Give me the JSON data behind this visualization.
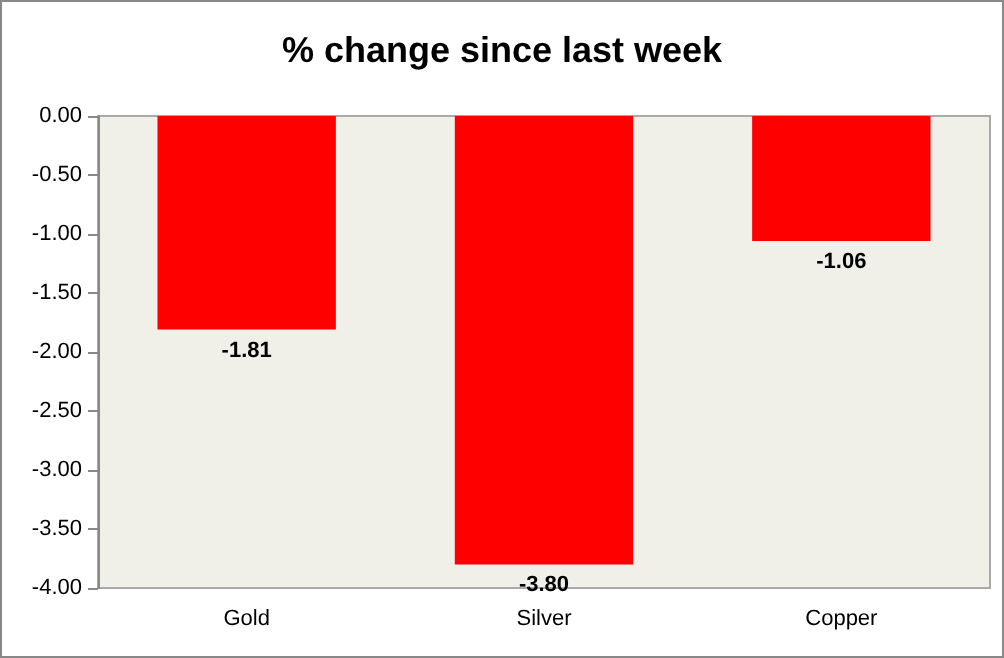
{
  "chart_data": {
    "type": "bar",
    "title": "% change since last week",
    "categories": [
      "Gold",
      "Silver",
      "Copper"
    ],
    "values": [
      -1.81,
      -3.8,
      -1.06
    ],
    "value_labels": [
      "-1.81",
      "-3.80",
      "-1.06"
    ],
    "color": "#ff0000",
    "ylim": [
      -4,
      0
    ],
    "yticks": [
      {
        "value": 0,
        "label": "0.00"
      },
      {
        "value": -0.5,
        "label": "-0.50"
      },
      {
        "value": -1,
        "label": "-1.00"
      },
      {
        "value": -1.5,
        "label": "-1.50"
      },
      {
        "value": -2,
        "label": "-2.00"
      },
      {
        "value": -2.5,
        "label": "-2.50"
      },
      {
        "value": -3,
        "label": "-3.00"
      },
      {
        "value": -3.5,
        "label": "-3.50"
      },
      {
        "value": -4,
        "label": "-4.00"
      }
    ],
    "grid": false
  }
}
